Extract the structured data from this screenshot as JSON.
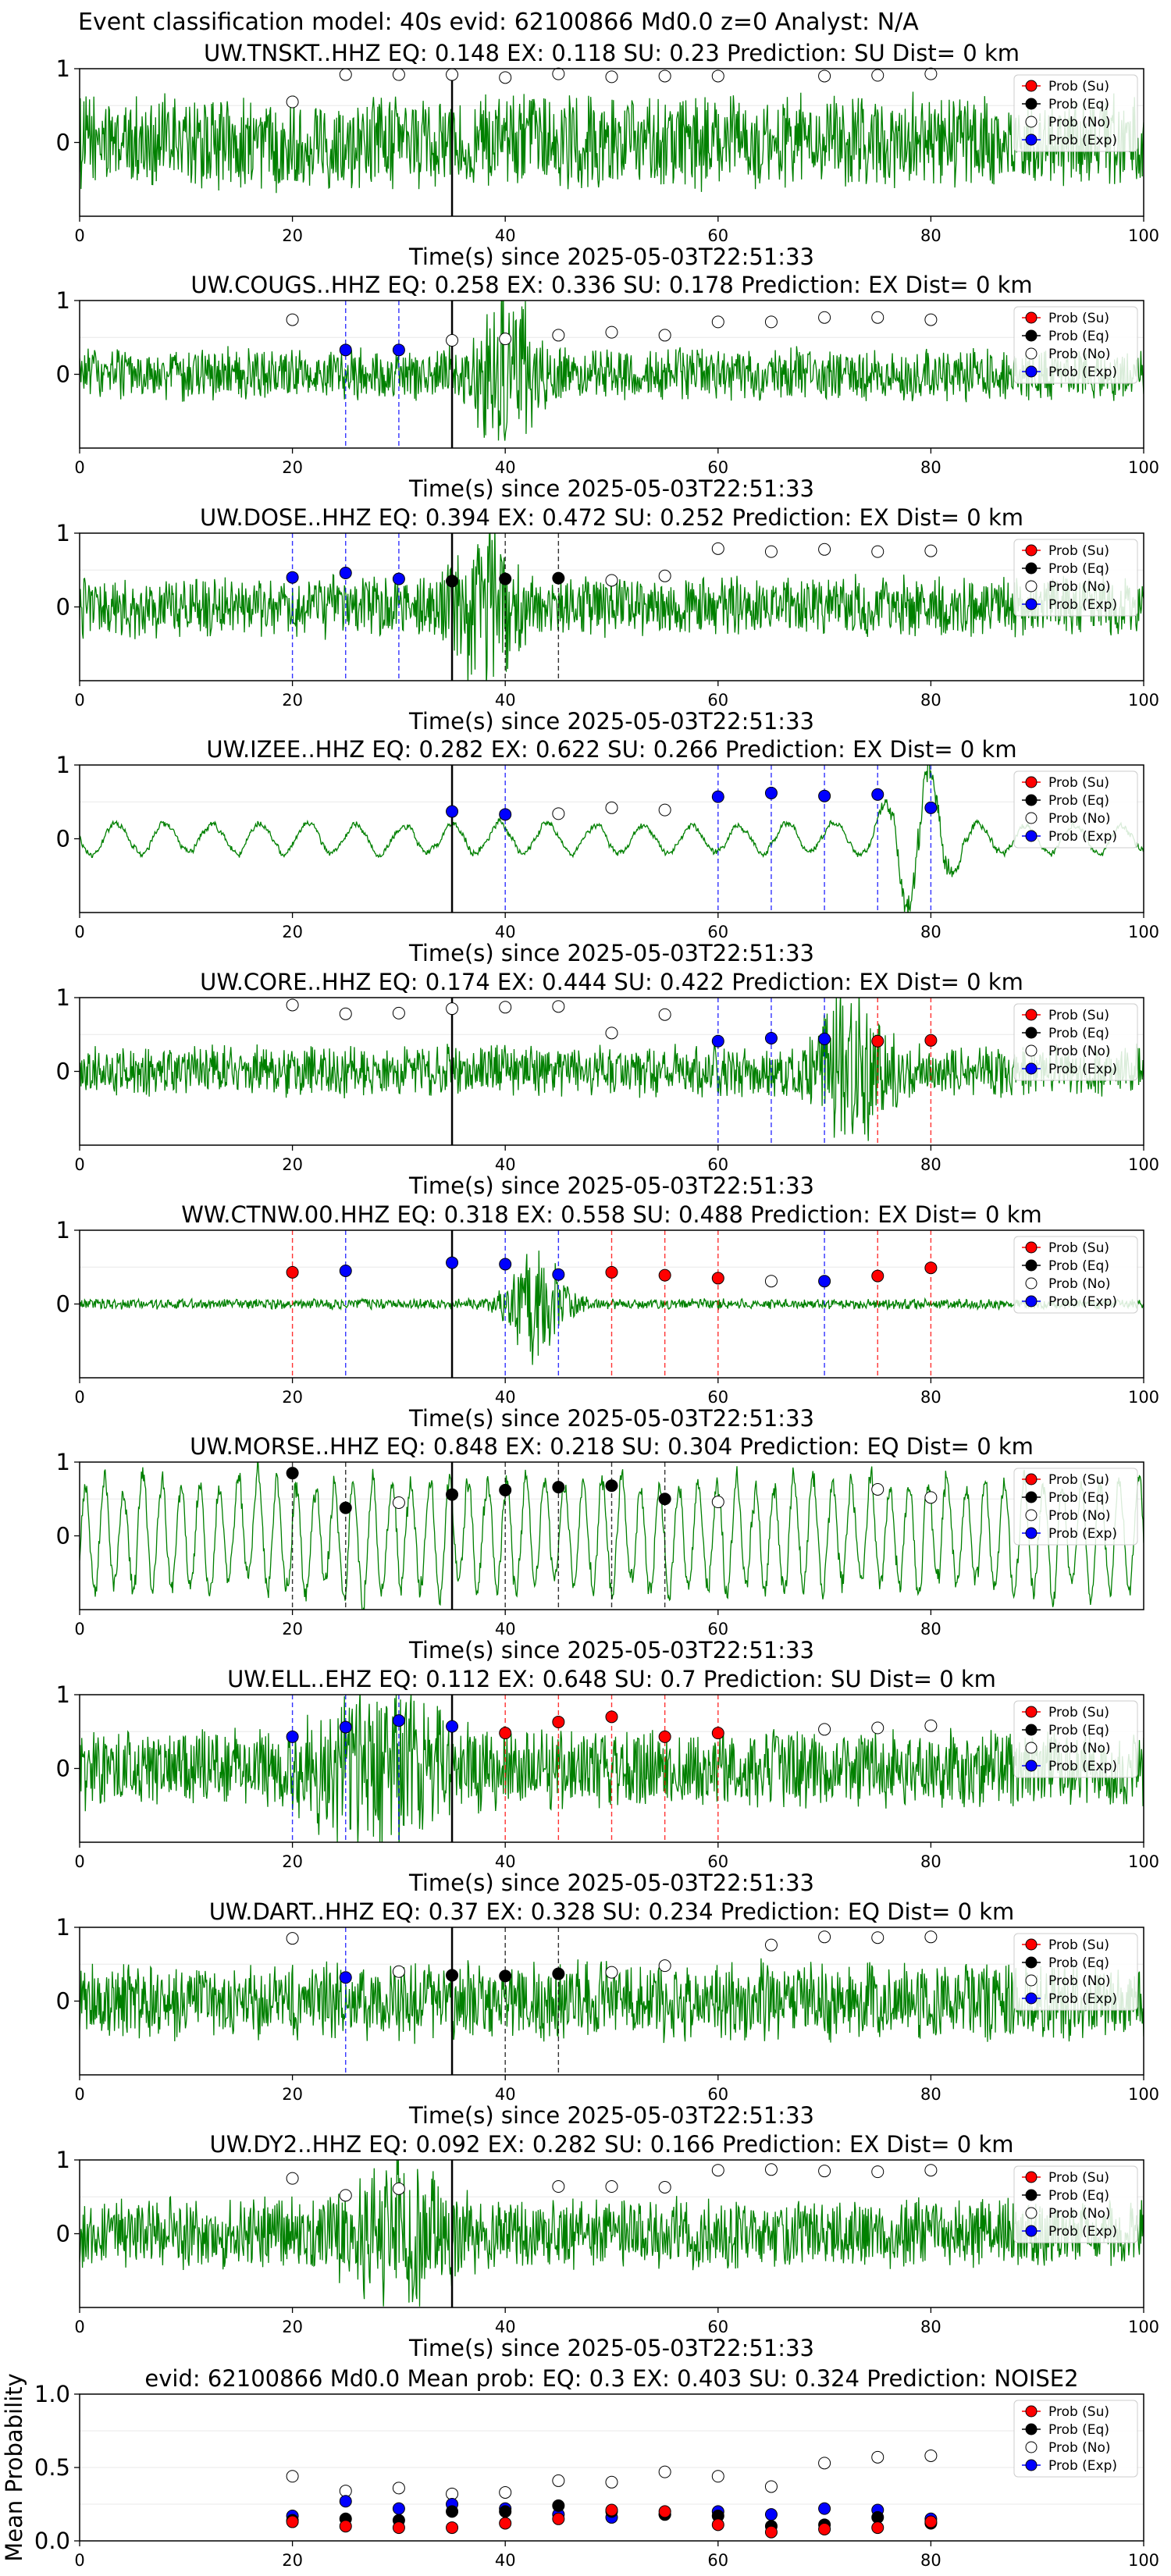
{
  "figure_title": "Event classification model: 40s evid: 62100866 Md0.0 z=0 Analyst: N/A",
  "legend_labels": [
    "Prob (Su)",
    "Prob (Eq)",
    "Prob (No)",
    "Prob (Exp)"
  ],
  "colors": {
    "waveform": "#008000",
    "su": "#ff0000",
    "eq": "#000000",
    "no": "#ffffff",
    "exp": "#0000ff",
    "su_line": "#ff0000",
    "eq_line": "#000000",
    "exp_line": "#0000ff"
  },
  "chart_data": [
    {
      "type": "line",
      "title": "UW.TNSKT..HHZ   EQ: 0.148  EX: 0.118  SU: 0.23   Prediction: SU    Dist= 0 km",
      "xlabel": "Time(s) since 2025-05-03T22:51:33",
      "xlim": [
        0,
        100
      ],
      "ylim": [
        -1,
        1
      ],
      "xticks": [
        0,
        20,
        40,
        60,
        80,
        100
      ],
      "yticks": [
        0,
        1
      ],
      "event_time": 35,
      "amplitude": 0.55,
      "dominant_period": 0,
      "burst": {
        "center": 0,
        "width": 0,
        "gain": 0
      },
      "points": [
        {
          "x": 20,
          "y": 0.55,
          "cls": "no"
        },
        {
          "x": 25,
          "y": 0.92,
          "cls": "no"
        },
        {
          "x": 30,
          "y": 0.92,
          "cls": "no"
        },
        {
          "x": 35,
          "y": 0.92,
          "cls": "no"
        },
        {
          "x": 40,
          "y": 0.88,
          "cls": "no"
        },
        {
          "x": 45,
          "y": 0.93,
          "cls": "no"
        },
        {
          "x": 50,
          "y": 0.89,
          "cls": "no"
        },
        {
          "x": 55,
          "y": 0.9,
          "cls": "no"
        },
        {
          "x": 60,
          "y": 0.9,
          "cls": "no"
        },
        {
          "x": 70,
          "y": 0.9,
          "cls": "no"
        },
        {
          "x": 75,
          "y": 0.91,
          "cls": "no"
        },
        {
          "x": 80,
          "y": 0.93,
          "cls": "no"
        }
      ]
    },
    {
      "type": "line",
      "title": "UW.COUGS..HHZ   EQ: 0.258  EX: 0.336  SU: 0.178   Prediction: EX    Dist= 0 km",
      "xlabel": "Time(s) since 2025-05-03T22:51:33",
      "xlim": [
        0,
        100
      ],
      "ylim": [
        -1,
        1
      ],
      "xticks": [
        0,
        20,
        40,
        60,
        80,
        100
      ],
      "yticks": [
        0,
        1
      ],
      "event_time": 35,
      "amplitude": 0.3,
      "dominant_period": 0,
      "burst": {
        "center": 40,
        "width": 3,
        "gain": 2.5
      },
      "points": [
        {
          "x": 20,
          "y": 0.74,
          "cls": "no"
        },
        {
          "x": 25,
          "y": 0.33,
          "cls": "exp"
        },
        {
          "x": 30,
          "y": 0.33,
          "cls": "exp"
        },
        {
          "x": 35,
          "y": 0.46,
          "cls": "no"
        },
        {
          "x": 40,
          "y": 0.48,
          "cls": "no"
        },
        {
          "x": 45,
          "y": 0.53,
          "cls": "no"
        },
        {
          "x": 50,
          "y": 0.57,
          "cls": "no"
        },
        {
          "x": 55,
          "y": 0.53,
          "cls": "no"
        },
        {
          "x": 60,
          "y": 0.71,
          "cls": "no"
        },
        {
          "x": 65,
          "y": 0.71,
          "cls": "no"
        },
        {
          "x": 70,
          "y": 0.77,
          "cls": "no"
        },
        {
          "x": 75,
          "y": 0.77,
          "cls": "no"
        },
        {
          "x": 80,
          "y": 0.74,
          "cls": "no"
        }
      ]
    },
    {
      "type": "line",
      "title": "UW.DOSE..HHZ   EQ: 0.394  EX: 0.472  SU: 0.252   Prediction: EX    Dist= 0 km",
      "xlabel": "Time(s) since 2025-05-03T22:51:33",
      "xlim": [
        0,
        100
      ],
      "ylim": [
        -1,
        1
      ],
      "xticks": [
        0,
        20,
        40,
        60,
        80,
        100
      ],
      "yticks": [
        0,
        1
      ],
      "event_time": 35,
      "amplitude": 0.35,
      "dominant_period": 0,
      "burst": {
        "center": 38,
        "width": 3,
        "gain": 2
      },
      "points": [
        {
          "x": 20,
          "y": 0.4,
          "cls": "exp"
        },
        {
          "x": 25,
          "y": 0.46,
          "cls": "exp"
        },
        {
          "x": 30,
          "y": 0.38,
          "cls": "exp"
        },
        {
          "x": 35,
          "y": 0.35,
          "cls": "eq"
        },
        {
          "x": 40,
          "y": 0.38,
          "cls": "eq"
        },
        {
          "x": 45,
          "y": 0.39,
          "cls": "eq"
        },
        {
          "x": 50,
          "y": 0.36,
          "cls": "no"
        },
        {
          "x": 55,
          "y": 0.42,
          "cls": "no"
        },
        {
          "x": 60,
          "y": 0.79,
          "cls": "no"
        },
        {
          "x": 65,
          "y": 0.75,
          "cls": "no"
        },
        {
          "x": 70,
          "y": 0.78,
          "cls": "no"
        },
        {
          "x": 75,
          "y": 0.75,
          "cls": "no"
        },
        {
          "x": 80,
          "y": 0.76,
          "cls": "no"
        }
      ]
    },
    {
      "type": "line",
      "title": "UW.IZEE..HHZ   EQ: 0.282  EX: 0.622  SU: 0.266   Prediction: EX    Dist= 0 km",
      "xlabel": "Time(s) since 2025-05-03T22:51:33",
      "xlim": [
        0,
        100
      ],
      "ylim": [
        -1,
        1
      ],
      "xticks": [
        0,
        20,
        40,
        60,
        80,
        100
      ],
      "yticks": [
        0,
        1
      ],
      "event_time": 35,
      "amplitude": 0.12,
      "dominant_period": 4.5,
      "burst": {
        "center": 79,
        "width": 3,
        "gain": 5
      },
      "points": [
        {
          "x": 35,
          "y": 0.37,
          "cls": "exp"
        },
        {
          "x": 40,
          "y": 0.33,
          "cls": "exp"
        },
        {
          "x": 45,
          "y": 0.34,
          "cls": "no"
        },
        {
          "x": 50,
          "y": 0.42,
          "cls": "no"
        },
        {
          "x": 55,
          "y": 0.39,
          "cls": "no"
        },
        {
          "x": 60,
          "y": 0.57,
          "cls": "exp"
        },
        {
          "x": 65,
          "y": 0.62,
          "cls": "exp"
        },
        {
          "x": 70,
          "y": 0.58,
          "cls": "exp"
        },
        {
          "x": 75,
          "y": 0.6,
          "cls": "exp"
        },
        {
          "x": 80,
          "y": 0.42,
          "cls": "exp"
        }
      ]
    },
    {
      "type": "line",
      "title": "UW.CORE..HHZ   EQ: 0.174  EX: 0.444  SU: 0.422   Prediction: EX    Dist= 0 km",
      "xlabel": "Time(s) since 2025-05-03T22:51:33",
      "xlim": [
        0,
        100
      ],
      "ylim": [
        -1,
        1
      ],
      "xticks": [
        0,
        20,
        40,
        60,
        80,
        100
      ],
      "yticks": [
        0,
        1
      ],
      "event_time": 35,
      "amplitude": 0.3,
      "dominant_period": 0,
      "burst": {
        "center": 73,
        "width": 3,
        "gain": 3
      },
      "points": [
        {
          "x": 20,
          "y": 0.9,
          "cls": "no"
        },
        {
          "x": 25,
          "y": 0.78,
          "cls": "no"
        },
        {
          "x": 30,
          "y": 0.79,
          "cls": "no"
        },
        {
          "x": 35,
          "y": 0.85,
          "cls": "no"
        },
        {
          "x": 40,
          "y": 0.87,
          "cls": "no"
        },
        {
          "x": 45,
          "y": 0.88,
          "cls": "no"
        },
        {
          "x": 50,
          "y": 0.52,
          "cls": "no"
        },
        {
          "x": 55,
          "y": 0.77,
          "cls": "no"
        },
        {
          "x": 60,
          "y": 0.41,
          "cls": "exp"
        },
        {
          "x": 65,
          "y": 0.45,
          "cls": "exp"
        },
        {
          "x": 70,
          "y": 0.44,
          "cls": "exp"
        },
        {
          "x": 75,
          "y": 0.41,
          "cls": "su"
        },
        {
          "x": 80,
          "y": 0.42,
          "cls": "su"
        }
      ]
    },
    {
      "type": "line",
      "title": "WW.CTNW.00.HHZ   EQ: 0.318  EX: 0.558  SU: 0.488   Prediction: EX    Dist= 0 km",
      "xlabel": "Time(s) since 2025-05-03T22:51:33",
      "xlim": [
        0,
        100
      ],
      "ylim": [
        -1,
        1
      ],
      "xticks": [
        0,
        20,
        40,
        60,
        80,
        100
      ],
      "yticks": [
        0,
        1
      ],
      "event_time": 35,
      "amplitude": 0.06,
      "dominant_period": 0,
      "burst": {
        "center": 43,
        "width": 2.5,
        "gain": 12
      },
      "points": [
        {
          "x": 20,
          "y": 0.43,
          "cls": "su"
        },
        {
          "x": 25,
          "y": 0.45,
          "cls": "exp"
        },
        {
          "x": 35,
          "y": 0.56,
          "cls": "exp"
        },
        {
          "x": 40,
          "y": 0.54,
          "cls": "exp"
        },
        {
          "x": 45,
          "y": 0.4,
          "cls": "exp"
        },
        {
          "x": 50,
          "y": 0.43,
          "cls": "su"
        },
        {
          "x": 55,
          "y": 0.39,
          "cls": "su"
        },
        {
          "x": 60,
          "y": 0.35,
          "cls": "su"
        },
        {
          "x": 65,
          "y": 0.31,
          "cls": "no"
        },
        {
          "x": 70,
          "y": 0.31,
          "cls": "exp"
        },
        {
          "x": 75,
          "y": 0.38,
          "cls": "su"
        },
        {
          "x": 80,
          "y": 0.49,
          "cls": "su"
        }
      ]
    },
    {
      "type": "line",
      "title": "UW.MORSE..HHZ   EQ: 0.848  EX: 0.218  SU: 0.304   Prediction: EQ    Dist= 0 km",
      "xlabel": "Time(s) since 2025-05-03T22:51:33",
      "xlim": [
        0,
        100
      ],
      "ylim": [
        -1,
        1
      ],
      "xticks": [
        0,
        20,
        40,
        60,
        80
      ],
      "yticks": [
        0,
        1
      ],
      "event_time": 35,
      "amplitude": 0.45,
      "dominant_period": 1.8,
      "burst": {
        "center": 0,
        "width": 0,
        "gain": 0
      },
      "points": [
        {
          "x": 20,
          "y": 0.85,
          "cls": "eq"
        },
        {
          "x": 25,
          "y": 0.38,
          "cls": "eq"
        },
        {
          "x": 30,
          "y": 0.45,
          "cls": "no"
        },
        {
          "x": 35,
          "y": 0.56,
          "cls": "eq"
        },
        {
          "x": 40,
          "y": 0.62,
          "cls": "eq"
        },
        {
          "x": 45,
          "y": 0.66,
          "cls": "eq"
        },
        {
          "x": 50,
          "y": 0.68,
          "cls": "eq"
        },
        {
          "x": 55,
          "y": 0.5,
          "cls": "eq"
        },
        {
          "x": 60,
          "y": 0.46,
          "cls": "no"
        },
        {
          "x": 75,
          "y": 0.63,
          "cls": "no"
        },
        {
          "x": 80,
          "y": 0.52,
          "cls": "no"
        }
      ]
    },
    {
      "type": "line",
      "title": "UW.ELL..EHZ   EQ: 0.112  EX: 0.648  SU: 0.7   Prediction: SU    Dist= 0 km",
      "xlabel": "Time(s) since 2025-05-03T22:51:33",
      "xlim": [
        0,
        100
      ],
      "ylim": [
        -1,
        1
      ],
      "xticks": [
        0,
        20,
        40,
        60,
        80,
        100
      ],
      "yticks": [
        0,
        1
      ],
      "event_time": 35,
      "amplitude": 0.45,
      "dominant_period": 0,
      "burst": {
        "center": 28,
        "width": 6,
        "gain": 1.4
      },
      "points": [
        {
          "x": 20,
          "y": 0.43,
          "cls": "exp"
        },
        {
          "x": 25,
          "y": 0.56,
          "cls": "exp"
        },
        {
          "x": 30,
          "y": 0.65,
          "cls": "exp"
        },
        {
          "x": 35,
          "y": 0.57,
          "cls": "exp"
        },
        {
          "x": 40,
          "y": 0.48,
          "cls": "su"
        },
        {
          "x": 45,
          "y": 0.63,
          "cls": "su"
        },
        {
          "x": 50,
          "y": 0.7,
          "cls": "su"
        },
        {
          "x": 55,
          "y": 0.43,
          "cls": "su"
        },
        {
          "x": 60,
          "y": 0.48,
          "cls": "su"
        },
        {
          "x": 70,
          "y": 0.53,
          "cls": "no"
        },
        {
          "x": 75,
          "y": 0.55,
          "cls": "no"
        },
        {
          "x": 80,
          "y": 0.58,
          "cls": "no"
        }
      ]
    },
    {
      "type": "line",
      "title": "UW.DART..HHZ   EQ: 0.37  EX: 0.328  SU: 0.234   Prediction: EQ    Dist= 0 km",
      "xlabel": "Time(s) since 2025-05-03T22:51:33",
      "xlim": [
        0,
        100
      ],
      "ylim": [
        -1,
        1
      ],
      "xticks": [
        0,
        20,
        40,
        60,
        80,
        100
      ],
      "yticks": [
        0,
        1
      ],
      "event_time": 35,
      "amplitude": 0.45,
      "dominant_period": 0,
      "burst": {
        "center": 0,
        "width": 0,
        "gain": 0
      },
      "points": [
        {
          "x": 20,
          "y": 0.85,
          "cls": "no"
        },
        {
          "x": 25,
          "y": 0.32,
          "cls": "exp"
        },
        {
          "x": 30,
          "y": 0.4,
          "cls": "no"
        },
        {
          "x": 35,
          "y": 0.35,
          "cls": "eq"
        },
        {
          "x": 40,
          "y": 0.34,
          "cls": "eq"
        },
        {
          "x": 45,
          "y": 0.37,
          "cls": "eq"
        },
        {
          "x": 50,
          "y": 0.39,
          "cls": "no"
        },
        {
          "x": 55,
          "y": 0.48,
          "cls": "no"
        },
        {
          "x": 65,
          "y": 0.76,
          "cls": "no"
        },
        {
          "x": 70,
          "y": 0.87,
          "cls": "no"
        },
        {
          "x": 75,
          "y": 0.86,
          "cls": "no"
        },
        {
          "x": 80,
          "y": 0.87,
          "cls": "no"
        }
      ]
    },
    {
      "type": "line",
      "title": "UW.DY2..HHZ   EQ: 0.092  EX: 0.282  SU: 0.166   Prediction: EX    Dist= 0 km",
      "xlabel": "Time(s) since 2025-05-03T22:51:33",
      "xlim": [
        0,
        100
      ],
      "ylim": [
        -1,
        1
      ],
      "xticks": [
        0,
        20,
        40,
        60,
        80,
        100
      ],
      "yticks": [
        0,
        1
      ],
      "event_time": 35,
      "amplitude": 0.4,
      "dominant_period": 0,
      "burst": {
        "center": 30,
        "width": 5,
        "gain": 1.3
      },
      "points": [
        {
          "x": 20,
          "y": 0.75,
          "cls": "no"
        },
        {
          "x": 25,
          "y": 0.52,
          "cls": "no"
        },
        {
          "x": 30,
          "y": 0.61,
          "cls": "no"
        },
        {
          "x": 45,
          "y": 0.64,
          "cls": "no"
        },
        {
          "x": 50,
          "y": 0.64,
          "cls": "no"
        },
        {
          "x": 55,
          "y": 0.63,
          "cls": "no"
        },
        {
          "x": 60,
          "y": 0.86,
          "cls": "no"
        },
        {
          "x": 65,
          "y": 0.87,
          "cls": "no"
        },
        {
          "x": 70,
          "y": 0.85,
          "cls": "no"
        },
        {
          "x": 75,
          "y": 0.84,
          "cls": "no"
        },
        {
          "x": 80,
          "y": 0.86,
          "cls": "no"
        }
      ]
    },
    {
      "type": "scatter",
      "title": "evid: 62100866  Md0.0   Mean prob:   EQ: 0.3  EX: 0.403  SU: 0.324   Prediction: NOISE2",
      "xlabel": "",
      "ylabel": "Mean Probability",
      "xlim": [
        0,
        100
      ],
      "ylim": [
        0,
        1
      ],
      "xticks": [
        0,
        20,
        40,
        60,
        80,
        100
      ],
      "yticks": [
        0.0,
        0.5,
        1.0
      ],
      "ytick_labels": [
        "0.0",
        "0.5",
        "1.0"
      ],
      "series": [
        {
          "name": "Prob (No)",
          "cls": "no",
          "x": [
            20,
            25,
            30,
            35,
            40,
            45,
            50,
            55,
            60,
            65,
            70,
            75,
            80
          ],
          "y": [
            0.44,
            0.34,
            0.36,
            0.32,
            0.33,
            0.41,
            0.4,
            0.47,
            0.44,
            0.37,
            0.53,
            0.57,
            0.58
          ]
        },
        {
          "name": "Prob (Exp)",
          "cls": "exp",
          "x": [
            20,
            25,
            30,
            35,
            40,
            45,
            50,
            55,
            60,
            65,
            70,
            75,
            80
          ],
          "y": [
            0.17,
            0.27,
            0.22,
            0.25,
            0.22,
            0.18,
            0.16,
            0.18,
            0.2,
            0.18,
            0.22,
            0.21,
            0.15
          ]
        },
        {
          "name": "Prob (Eq)",
          "cls": "eq",
          "x": [
            20,
            25,
            30,
            35,
            40,
            45,
            50,
            55,
            60,
            65,
            70,
            75,
            80
          ],
          "y": [
            0.14,
            0.15,
            0.14,
            0.2,
            0.2,
            0.24,
            0.2,
            0.18,
            0.17,
            0.1,
            0.11,
            0.16,
            0.12
          ]
        },
        {
          "name": "Prob (Su)",
          "cls": "su",
          "x": [
            20,
            25,
            30,
            35,
            40,
            45,
            50,
            55,
            60,
            65,
            70,
            75,
            80
          ],
          "y": [
            0.13,
            0.1,
            0.09,
            0.09,
            0.12,
            0.15,
            0.21,
            0.2,
            0.11,
            0.06,
            0.08,
            0.09,
            0.13
          ]
        }
      ]
    }
  ]
}
